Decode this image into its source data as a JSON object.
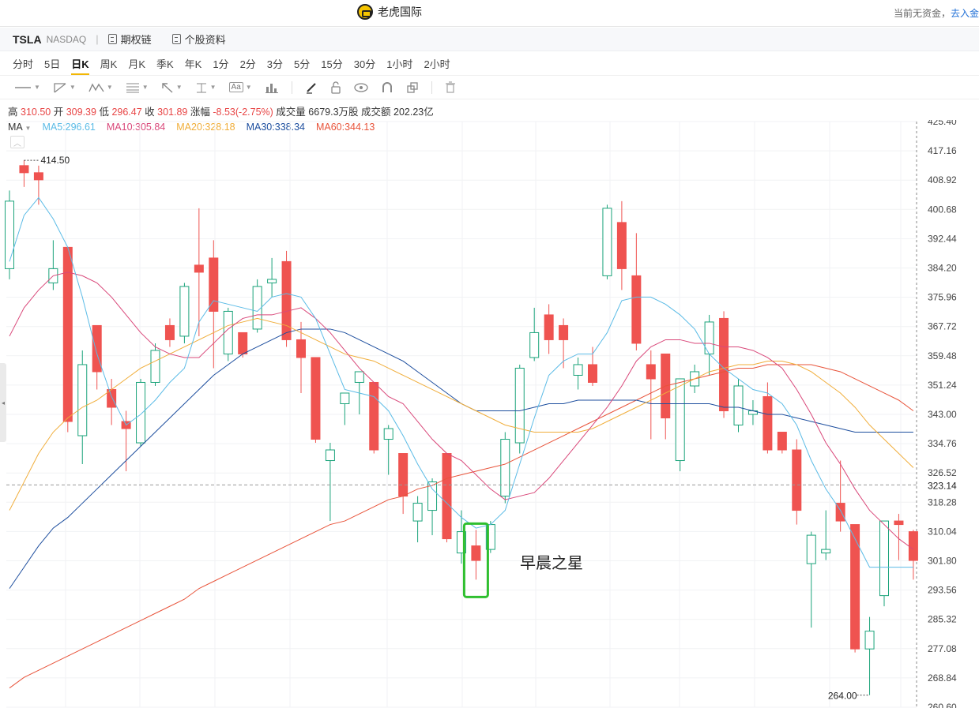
{
  "header": {
    "brand": "老虎国际",
    "account_text": "当前无资金，",
    "account_link": "去入金"
  },
  "symbol_bar": {
    "ticker": "TSLA",
    "exchange": "NASDAQ",
    "sep": "|",
    "options_chain": "期权链",
    "profile": "个股资料"
  },
  "periods": [
    "分时",
    "5日",
    "日K",
    "周K",
    "月K",
    "季K",
    "年K",
    "1分",
    "2分",
    "3分",
    "5分",
    "15分",
    "30分",
    "1小时",
    "2小时"
  ],
  "active_period": "日K",
  "toolbar": {
    "text_tool": "Aa"
  },
  "quote": {
    "high_label": "高",
    "high": "310.50",
    "open_label": "开",
    "open": "309.39",
    "low_label": "低",
    "low": "296.47",
    "close_label": "收",
    "close": "301.89",
    "change_label": "涨幅",
    "change": "-8.53(-2.75%)",
    "volume_label": "成交量",
    "volume": "6679.3万股",
    "turnover_label": "成交额",
    "turnover": "202.23亿"
  },
  "ma_legend": {
    "label": "MA",
    "items": [
      {
        "text": "MA5:296.61",
        "color": "#5bbbe6"
      },
      {
        "text": "MA10:305.84",
        "color": "#d9487a"
      },
      {
        "text": "MA20:328.18",
        "color": "#f0ad3a"
      },
      {
        "text": "MA30:338.34",
        "color": "#1d4e9e"
      },
      {
        "text": "MA60:344.13",
        "color": "#e8533a"
      }
    ]
  },
  "annotation": "早晨之星",
  "chart_data": {
    "type": "candlestick",
    "y_ticks": [
      "425.40",
      "417.16",
      "408.92",
      "400.68",
      "392.44",
      "384.20",
      "375.96",
      "367.72",
      "359.48",
      "351.24",
      "343.00",
      "334.76",
      "326.52",
      "318.28",
      "310.04",
      "301.80",
      "293.56",
      "285.32",
      "277.08",
      "268.84",
      "260.60"
    ],
    "ylim": [
      260.6,
      425.4
    ],
    "current_price_label": "323.14",
    "current_price": 323.14,
    "high_marker": "414.50",
    "low_marker": "264.00",
    "colors": {
      "up": "#1aa37a",
      "down": "#ef5350"
    },
    "candles": [
      {
        "o": 384,
        "h": 406,
        "l": 381,
        "c": 403
      },
      {
        "o": 413,
        "h": 414.5,
        "l": 407,
        "c": 411
      },
      {
        "o": 411,
        "h": 413,
        "l": 402,
        "c": 409
      },
      {
        "o": 380,
        "h": 392,
        "l": 378,
        "c": 384
      },
      {
        "o": 390,
        "h": 390,
        "l": 338,
        "c": 341
      },
      {
        "o": 337,
        "h": 361,
        "l": 329,
        "c": 357
      },
      {
        "o": 368,
        "h": 368,
        "l": 350,
        "c": 355
      },
      {
        "o": 350,
        "h": 353,
        "l": 340,
        "c": 345
      },
      {
        "o": 341,
        "h": 344,
        "l": 327,
        "c": 339
      },
      {
        "o": 335,
        "h": 353,
        "l": 334,
        "c": 352
      },
      {
        "o": 352,
        "h": 363,
        "l": 351,
        "c": 361
      },
      {
        "o": 368,
        "h": 370,
        "l": 362,
        "c": 364
      },
      {
        "o": 365,
        "h": 380,
        "l": 363,
        "c": 379
      },
      {
        "o": 385,
        "h": 401,
        "l": 365,
        "c": 383
      },
      {
        "o": 387,
        "h": 392,
        "l": 356,
        "c": 372
      },
      {
        "o": 360,
        "h": 373,
        "l": 358,
        "c": 372
      },
      {
        "o": 366,
        "h": 366,
        "l": 359,
        "c": 360
      },
      {
        "o": 367,
        "h": 381,
        "l": 366,
        "c": 379
      },
      {
        "o": 380,
        "h": 387,
        "l": 376,
        "c": 381
      },
      {
        "o": 386,
        "h": 389,
        "l": 362,
        "c": 364
      },
      {
        "o": 364,
        "h": 369,
        "l": 349,
        "c": 359
      },
      {
        "o": 359,
        "h": 359,
        "l": 335,
        "c": 336
      },
      {
        "o": 330,
        "h": 335,
        "l": 313,
        "c": 333
      },
      {
        "o": 346,
        "h": 349,
        "l": 340,
        "c": 349
      },
      {
        "o": 352,
        "h": 355,
        "l": 343,
        "c": 355
      },
      {
        "o": 352,
        "h": 352,
        "l": 332,
        "c": 333
      },
      {
        "o": 336,
        "h": 340,
        "l": 326,
        "c": 339
      },
      {
        "o": 332,
        "h": 332,
        "l": 315,
        "c": 320
      },
      {
        "o": 313,
        "h": 320,
        "l": 307,
        "c": 318
      },
      {
        "o": 316,
        "h": 325,
        "l": 309,
        "c": 324
      },
      {
        "o": 332,
        "h": 332,
        "l": 307,
        "c": 308
      },
      {
        "o": 304,
        "h": 316,
        "l": 301,
        "c": 310
      },
      {
        "o": 306,
        "h": 310.5,
        "l": 296.5,
        "c": 301.9
      },
      {
        "o": 305,
        "h": 313,
        "l": 304,
        "c": 312
      },
      {
        "o": 320,
        "h": 338,
        "l": 318,
        "c": 336
      },
      {
        "o": 335,
        "h": 357,
        "l": 332,
        "c": 356
      },
      {
        "o": 359,
        "h": 373,
        "l": 358,
        "c": 366
      },
      {
        "o": 371,
        "h": 374,
        "l": 360,
        "c": 364
      },
      {
        "o": 368,
        "h": 370,
        "l": 356,
        "c": 364
      },
      {
        "o": 354,
        "h": 359,
        "l": 350,
        "c": 357
      },
      {
        "o": 357,
        "h": 362,
        "l": 351,
        "c": 352
      },
      {
        "o": 382,
        "h": 402,
        "l": 381,
        "c": 401
      },
      {
        "o": 397,
        "h": 403,
        "l": 378,
        "c": 384
      },
      {
        "o": 382,
        "h": 394,
        "l": 361,
        "c": 363
      },
      {
        "o": 357,
        "h": 361,
        "l": 336,
        "c": 353
      },
      {
        "o": 360,
        "h": 360,
        "l": 336,
        "c": 342
      },
      {
        "o": 330,
        "h": 352,
        "l": 327,
        "c": 353
      },
      {
        "o": 351,
        "h": 357,
        "l": 349,
        "c": 355
      },
      {
        "o": 360,
        "h": 371,
        "l": 354,
        "c": 369
      },
      {
        "o": 370,
        "h": 372,
        "l": 342,
        "c": 344
      },
      {
        "o": 340,
        "h": 353,
        "l": 338,
        "c": 351
      },
      {
        "o": 343,
        "h": 347,
        "l": 340,
        "c": 344
      },
      {
        "o": 348,
        "h": 352,
        "l": 332,
        "c": 333
      },
      {
        "o": 338,
        "h": 338,
        "l": 332,
        "c": 333
      },
      {
        "o": 333,
        "h": 336,
        "l": 312,
        "c": 316
      },
      {
        "o": 301,
        "h": 310,
        "l": 283,
        "c": 309
      },
      {
        "o": 304,
        "h": 316,
        "l": 302,
        "c": 305
      },
      {
        "o": 318,
        "h": 330,
        "l": 310,
        "c": 313
      },
      {
        "o": 312,
        "h": 312,
        "l": 276,
        "c": 277
      },
      {
        "o": 277,
        "h": 286,
        "l": 264,
        "c": 282
      },
      {
        "o": 292,
        "h": 313,
        "l": 289,
        "c": 313
      },
      {
        "o": 313,
        "h": 315,
        "l": 302,
        "c": 312
      },
      {
        "o": 310,
        "h": 310.5,
        "l": 296.5,
        "c": 301.9
      }
    ],
    "ma5": [
      386,
      399,
      404,
      398,
      390,
      376,
      360,
      348,
      340,
      343,
      347,
      352,
      356,
      369,
      375,
      374,
      373,
      372,
      376,
      377,
      376,
      370,
      360,
      350,
      349,
      348,
      344,
      337,
      329,
      322,
      318,
      314,
      311,
      312,
      316,
      329,
      342,
      354,
      358,
      360,
      360,
      366,
      375,
      376,
      376,
      374,
      371,
      367,
      360,
      356,
      353,
      350,
      349,
      346,
      340,
      330,
      322,
      316,
      308,
      300,
      300,
      300,
      300
    ],
    "ma10": [
      365,
      373,
      378,
      382,
      383,
      382,
      380,
      376,
      371,
      366,
      362,
      360,
      359,
      359,
      363,
      367,
      370,
      371,
      371,
      372,
      373,
      370,
      366,
      361,
      356,
      352,
      348,
      346,
      341,
      336,
      332,
      330,
      326,
      322,
      319,
      320,
      321,
      325,
      330,
      335,
      340,
      345,
      351,
      358,
      362,
      364,
      364,
      363,
      363,
      362,
      362,
      361,
      359,
      356,
      350,
      343,
      335,
      329,
      322,
      316,
      312,
      308,
      305
    ],
    "ma20": [
      316,
      324,
      332,
      338,
      342,
      345,
      347,
      350,
      353,
      356,
      358,
      360,
      362,
      364,
      366,
      368,
      369,
      370,
      369,
      368,
      366,
      364,
      362,
      360,
      359,
      358,
      356,
      354,
      352,
      350,
      348,
      346,
      344,
      342,
      340,
      339,
      338,
      338,
      338,
      338,
      339,
      341,
      343,
      345,
      347,
      349,
      351,
      353,
      355,
      356,
      357,
      357,
      358,
      358,
      357,
      355,
      352,
      349,
      345,
      340,
      336,
      332,
      328
    ],
    "ma30": [
      294,
      300,
      306,
      311,
      314,
      318,
      322,
      326,
      330,
      334,
      338,
      342,
      346,
      350,
      354,
      357,
      360,
      362,
      364,
      366,
      367,
      367,
      367,
      366,
      364,
      362,
      360,
      358,
      355,
      352,
      349,
      346,
      344,
      344,
      344,
      344,
      345,
      346,
      346,
      347,
      347,
      347,
      347,
      347,
      346,
      346,
      346,
      346,
      346,
      345,
      345,
      344,
      343,
      343,
      342,
      341,
      340,
      339,
      338,
      338,
      338,
      338,
      338
    ],
    "ma60": [
      266,
      269,
      271,
      273,
      275,
      277,
      279,
      281,
      283,
      285,
      287,
      289,
      291,
      294,
      296,
      298,
      300,
      302,
      304,
      306,
      308,
      310,
      312,
      313,
      315,
      317,
      319,
      320,
      322,
      323,
      325,
      326,
      327,
      328,
      329,
      331,
      333,
      335,
      337,
      339,
      341,
      343,
      345,
      347,
      349,
      351,
      352,
      353,
      354,
      355,
      356,
      356,
      357,
      357,
      357,
      357,
      356,
      355,
      353,
      351,
      349,
      347,
      344
    ]
  }
}
